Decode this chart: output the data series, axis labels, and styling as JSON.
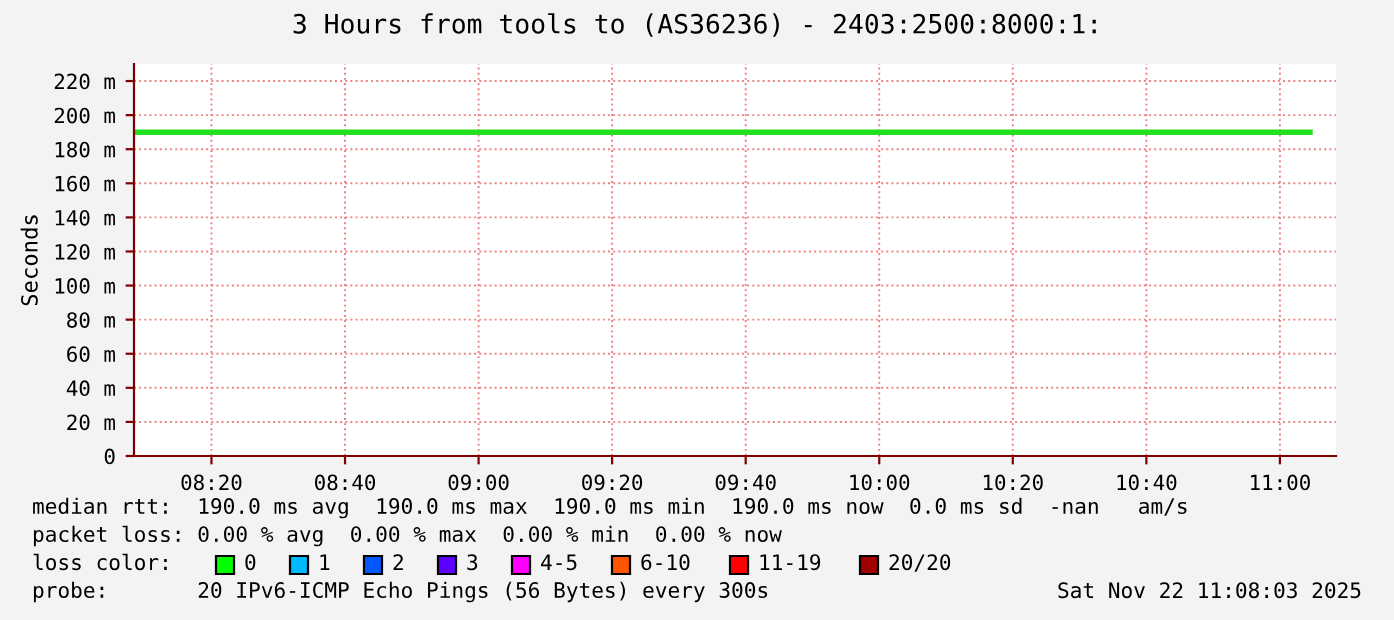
{
  "chart_data": {
    "type": "line",
    "title": "3 Hours from tools to (AS36236) - 2403:2500:8000:1:",
    "ylabel": "Seconds",
    "x": [
      8.14,
      11.075
    ],
    "series": [
      {
        "color": "#20e020",
        "values": [
          190,
          190
        ]
      }
    ],
    "xlim": [
      8.14,
      11.14
    ],
    "xticks": [
      {
        "value": 8.3333,
        "label": "08:20"
      },
      {
        "value": 8.6667,
        "label": "08:40"
      },
      {
        "value": 9.0,
        "label": "09:00"
      },
      {
        "value": 9.3333,
        "label": "09:20"
      },
      {
        "value": 9.6667,
        "label": "09:40"
      },
      {
        "value": 10.0,
        "label": "10:00"
      },
      {
        "value": 10.3333,
        "label": "10:20"
      },
      {
        "value": 10.6667,
        "label": "10:40"
      },
      {
        "value": 11.0,
        "label": "11:00"
      }
    ],
    "ylim": [
      0,
      230
    ],
    "yticks": [
      0,
      {
        "value": 20,
        "label": "20 m"
      },
      {
        "value": 40,
        "label": "40 m"
      },
      {
        "value": 60,
        "label": "60 m"
      },
      {
        "value": 80,
        "label": "80 m"
      },
      {
        "value": 100,
        "label": "100 m"
      },
      {
        "value": 120,
        "label": "120 m"
      },
      {
        "value": 140,
        "label": "140 m"
      },
      {
        "value": 160,
        "label": "160 m"
      },
      {
        "value": 180,
        "label": "180 m"
      },
      {
        "value": 200,
        "label": "200 m"
      },
      {
        "value": 220,
        "label": "220 m"
      }
    ],
    "grid": true,
    "legend": false,
    "marker": "none",
    "line_style": "solid",
    "annotations": [
      "median rtt:  190.0 ms avg  190.0 ms max  190.0 ms min  190.0 ms now  0.0 ms sd  -nan   am/s",
      "packet loss: 0.00 % avg  0.00 % max  0.00 % min  0.00 % now",
      "loss color:",
      "0",
      "1",
      "2",
      "3",
      "4-5",
      "6-10",
      "11-19",
      "20/20",
      "probe:       20 IPv6-ICMP Echo Pings (56 Bytes) every 300s",
      "Sat Nov 22 11:08:03 2025"
    ]
  }
}
